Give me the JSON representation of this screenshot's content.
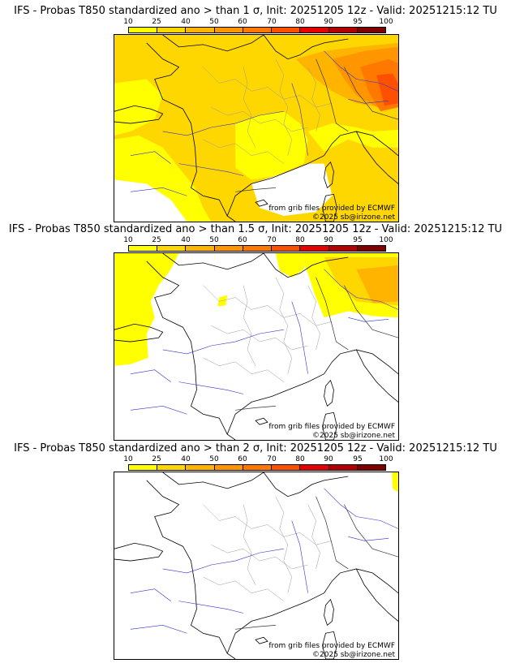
{
  "scale": {
    "ticks": [
      "10",
      "25",
      "40",
      "50",
      "60",
      "70",
      "80",
      "90",
      "95",
      "100"
    ],
    "colors": [
      "#ffff00",
      "#ffd700",
      "#ffb400",
      "#ff9600",
      "#ff7800",
      "#ff5000",
      "#e60000",
      "#b40000",
      "#800000",
      "#4d0000"
    ]
  },
  "panels": [
    {
      "title": "IFS - Probas T850  standardized ano > than 1 σ, Init: 20251205 12z - Valid: 20251215:12 TU",
      "credit_source": "from grib files provided by ECMWF",
      "credit_copyright": "©2025 sb@irizone.net"
    },
    {
      "title": "IFS - Probas T850  standardized ano > than 1.5 σ, Init: 20251205 12z - Valid: 20251215:12 TU",
      "credit_source": "from grib files provided by ECMWF",
      "credit_copyright": "©2025 sb@irizone.net"
    },
    {
      "title": "IFS - Probas T850  standardized ano > than 2 σ, Init: 20251205 12z - Valid: 20251215:12 TU",
      "credit_source": "from grib files provided by ECMWF",
      "credit_copyright": "©2025 sb@irizone.net"
    }
  ]
}
